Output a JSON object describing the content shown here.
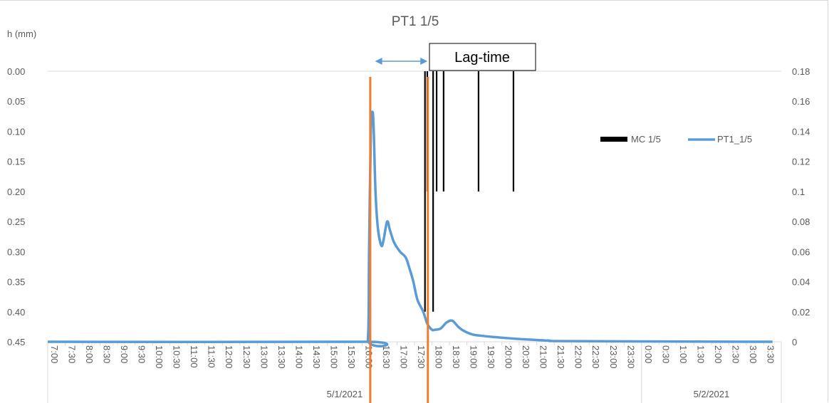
{
  "chart_data": {
    "type": "line",
    "title": "PT1 1/5",
    "ylabel": "h (mm)",
    "y_reversed": true,
    "ylim": [
      0,
      0.45
    ],
    "y_ticks": [
      "0.00",
      "0.05",
      "0.10",
      "0.15",
      "0.20",
      "0.25",
      "0.30",
      "0.35",
      "0.40",
      "0.45"
    ],
    "y2lim": [
      0,
      0.18
    ],
    "y2_ticks": [
      "0.18",
      "0.16",
      "0.14",
      "0.12",
      "0.1",
      "0.08",
      "0.06",
      "0.04",
      "0.02",
      "0"
    ],
    "x_ticks": [
      "7:00",
      "7:30",
      "8:00",
      "8:30",
      "9:00",
      "9:30",
      "10:00",
      "10:30",
      "11:00",
      "11:30",
      "12:00",
      "12:30",
      "13:00",
      "13:30",
      "14:00",
      "14:30",
      "15:00",
      "15:30",
      "16:00",
      "16:30",
      "17:00",
      "17:30",
      "18:00",
      "18:30",
      "19:00",
      "19:30",
      "20:00",
      "20:30",
      "21:00",
      "21:30",
      "22:00",
      "22:30",
      "23:00",
      "23:30",
      "0:00",
      "0:30",
      "1:00",
      "1:30",
      "2:00",
      "2:30",
      "3:00",
      "3:30"
    ],
    "x_groups": [
      {
        "label": "5/1/2021",
        "from": "7:00",
        "to": "0:00"
      },
      {
        "label": "5/2/2021",
        "from": "0:00",
        "to": "3:30"
      }
    ],
    "legend_position": "right",
    "series": [
      {
        "name": "PT1_1/5",
        "axis": "y",
        "color": "#5b9bd5",
        "points": [
          [
            "7:00",
            0.45
          ],
          [
            "16:00",
            0.45
          ],
          [
            "16:10",
            0.445
          ],
          [
            "16:12",
            0.3
          ],
          [
            "16:15",
            0.1
          ],
          [
            "16:18",
            0.068
          ],
          [
            "16:20",
            0.1
          ],
          [
            "16:23",
            0.2
          ],
          [
            "16:27",
            0.26
          ],
          [
            "16:33",
            0.29
          ],
          [
            "16:37",
            0.28
          ],
          [
            "16:43",
            0.25
          ],
          [
            "16:48",
            0.265
          ],
          [
            "16:55",
            0.285
          ],
          [
            "17:05",
            0.3
          ],
          [
            "17:15",
            0.31
          ],
          [
            "17:22",
            0.33
          ],
          [
            "17:28",
            0.35
          ],
          [
            "17:35",
            0.38
          ],
          [
            "17:45",
            0.4
          ],
          [
            "17:52",
            0.42
          ],
          [
            "18:00",
            0.43
          ],
          [
            "18:05",
            0.43
          ],
          [
            "18:15",
            0.428
          ],
          [
            "18:25",
            0.418
          ],
          [
            "18:35",
            0.415
          ],
          [
            "18:45",
            0.425
          ],
          [
            "18:55",
            0.432
          ],
          [
            "19:10",
            0.438
          ],
          [
            "19:25",
            0.44
          ],
          [
            "19:45",
            0.442
          ],
          [
            "20:10",
            0.444
          ],
          [
            "20:40",
            0.446
          ],
          [
            "21:20",
            0.448
          ],
          [
            "22:00",
            0.449
          ],
          [
            "3:45",
            0.45
          ]
        ]
      },
      {
        "name": "MC 1/5",
        "axis": "y2",
        "type": "bar",
        "color": "#000000",
        "bars": [
          [
            "17:48",
            0.02
          ],
          [
            "17:52",
            0.1
          ],
          [
            "18:02",
            0.02
          ],
          [
            "18:08",
            0.1
          ],
          [
            "18:20",
            0.1
          ],
          [
            "19:20",
            0.1
          ],
          [
            "20:20",
            0.1
          ]
        ]
      }
    ],
    "markers": [
      {
        "x": "16:14",
        "color": "#ed7d31"
      },
      {
        "x": "17:53",
        "color": "#ed7d31"
      }
    ],
    "annotations": {
      "lag_time": {
        "text": "Lag-time",
        "arrow_from": "16:10",
        "arrow_to": "17:45",
        "arrow_color": "#5b9bd5"
      }
    }
  }
}
